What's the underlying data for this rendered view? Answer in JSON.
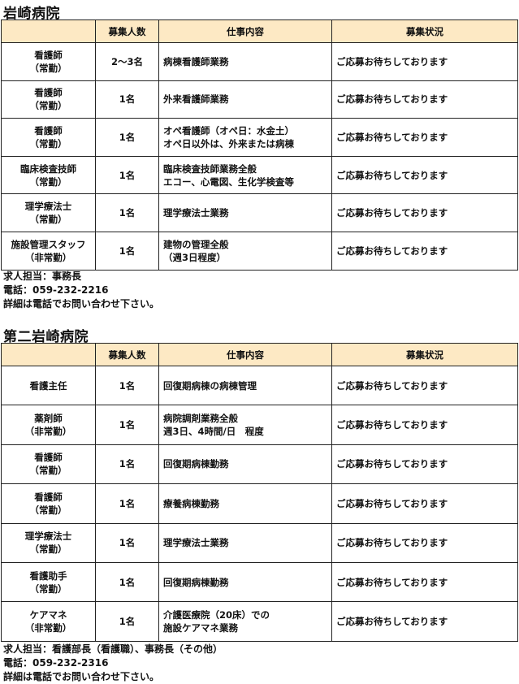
{
  "columns": [
    "",
    "募集人数",
    "仕事内容",
    "募集状況"
  ],
  "sections": [
    {
      "title": "岩崎病院",
      "rows": [
        {
          "position": [
            "看護師",
            "（常勤）"
          ],
          "count": "2～3名",
          "duties": [
            "病棟看護師業務"
          ],
          "status": "ご応募お待ちしております"
        },
        {
          "position": [
            "看護師",
            "（常勤）"
          ],
          "count": "1名",
          "duties": [
            "外来看護師業務"
          ],
          "status": "ご応募お待ちしております"
        },
        {
          "position": [
            "看護師",
            "（常勤）"
          ],
          "count": "1名",
          "duties": [
            "オペ看護師（オペ日：水金土）",
            "オペ日以外は、外来または病棟"
          ],
          "status": "ご応募お待ちしております"
        },
        {
          "position": [
            "臨床検査技師",
            "（常勤）"
          ],
          "count": "1名",
          "duties": [
            "臨床検査技師業務全般",
            "エコー、心電図、生化学検査等"
          ],
          "status": "ご応募お待ちしております"
        },
        {
          "position": [
            "理学療法士",
            "（常勤）"
          ],
          "count": "1名",
          "duties": [
            "理学療法士業務"
          ],
          "status": "ご応募お待ちしております"
        },
        {
          "position": [
            "施設管理スタッフ",
            "（非常勤）"
          ],
          "count": "1名",
          "duties": [
            "建物の管理全般",
            "（週3日程度）"
          ],
          "status": "ご応募お待ちしております"
        }
      ],
      "footer": [
        "求人担当：事務長",
        "電話：059-232-2216",
        "詳細は電話でお問い合わせ下さい。"
      ]
    },
    {
      "title": "第二岩崎病院",
      "rows": [
        {
          "position": [
            "看護主任"
          ],
          "count": "1名",
          "duties": [
            "回復期病棟の病棟管理"
          ],
          "status": "ご応募お待ちしております"
        },
        {
          "position": [
            "薬剤師",
            "（非常勤）"
          ],
          "count": "1名",
          "duties": [
            "病院調剤業務全般",
            "週3日、4時間/日　程度"
          ],
          "status": "ご応募お待ちしております"
        },
        {
          "position": [
            "看護師",
            "（常勤）"
          ],
          "count": "1名",
          "duties": [
            "回復期病棟勤務"
          ],
          "status": "ご応募お待ちしております"
        },
        {
          "position": [
            "看護師",
            "（常勤）"
          ],
          "count": "1名",
          "duties": [
            "療養病棟勤務"
          ],
          "status": "ご応募お待ちしております"
        },
        {
          "position": [
            "理学療法士",
            "（常勤）"
          ],
          "count": "1名",
          "duties": [
            "理学療法士業務"
          ],
          "status": "ご応募お待ちしております"
        },
        {
          "position": [
            "看護助手",
            "（常勤）"
          ],
          "count": "1名",
          "duties": [
            "回復期病棟勤務"
          ],
          "status": "ご応募お待ちしております"
        },
        {
          "position": [
            "ケアマネ",
            "（非常勤）"
          ],
          "count": "1名",
          "duties": [
            "介護医療院（20床）での",
            "施設ケアマネ業務"
          ],
          "status": "ご応募お待ちしております"
        }
      ],
      "footer": [
        "求人担当：看護部長（看護職）、事務長（その他）",
        "電話：059-232-2316",
        "詳細は電話でお問い合わせ下さい。"
      ]
    }
  ],
  "colors": {
    "header_bg": "#fde9c4",
    "border": "#222222"
  }
}
